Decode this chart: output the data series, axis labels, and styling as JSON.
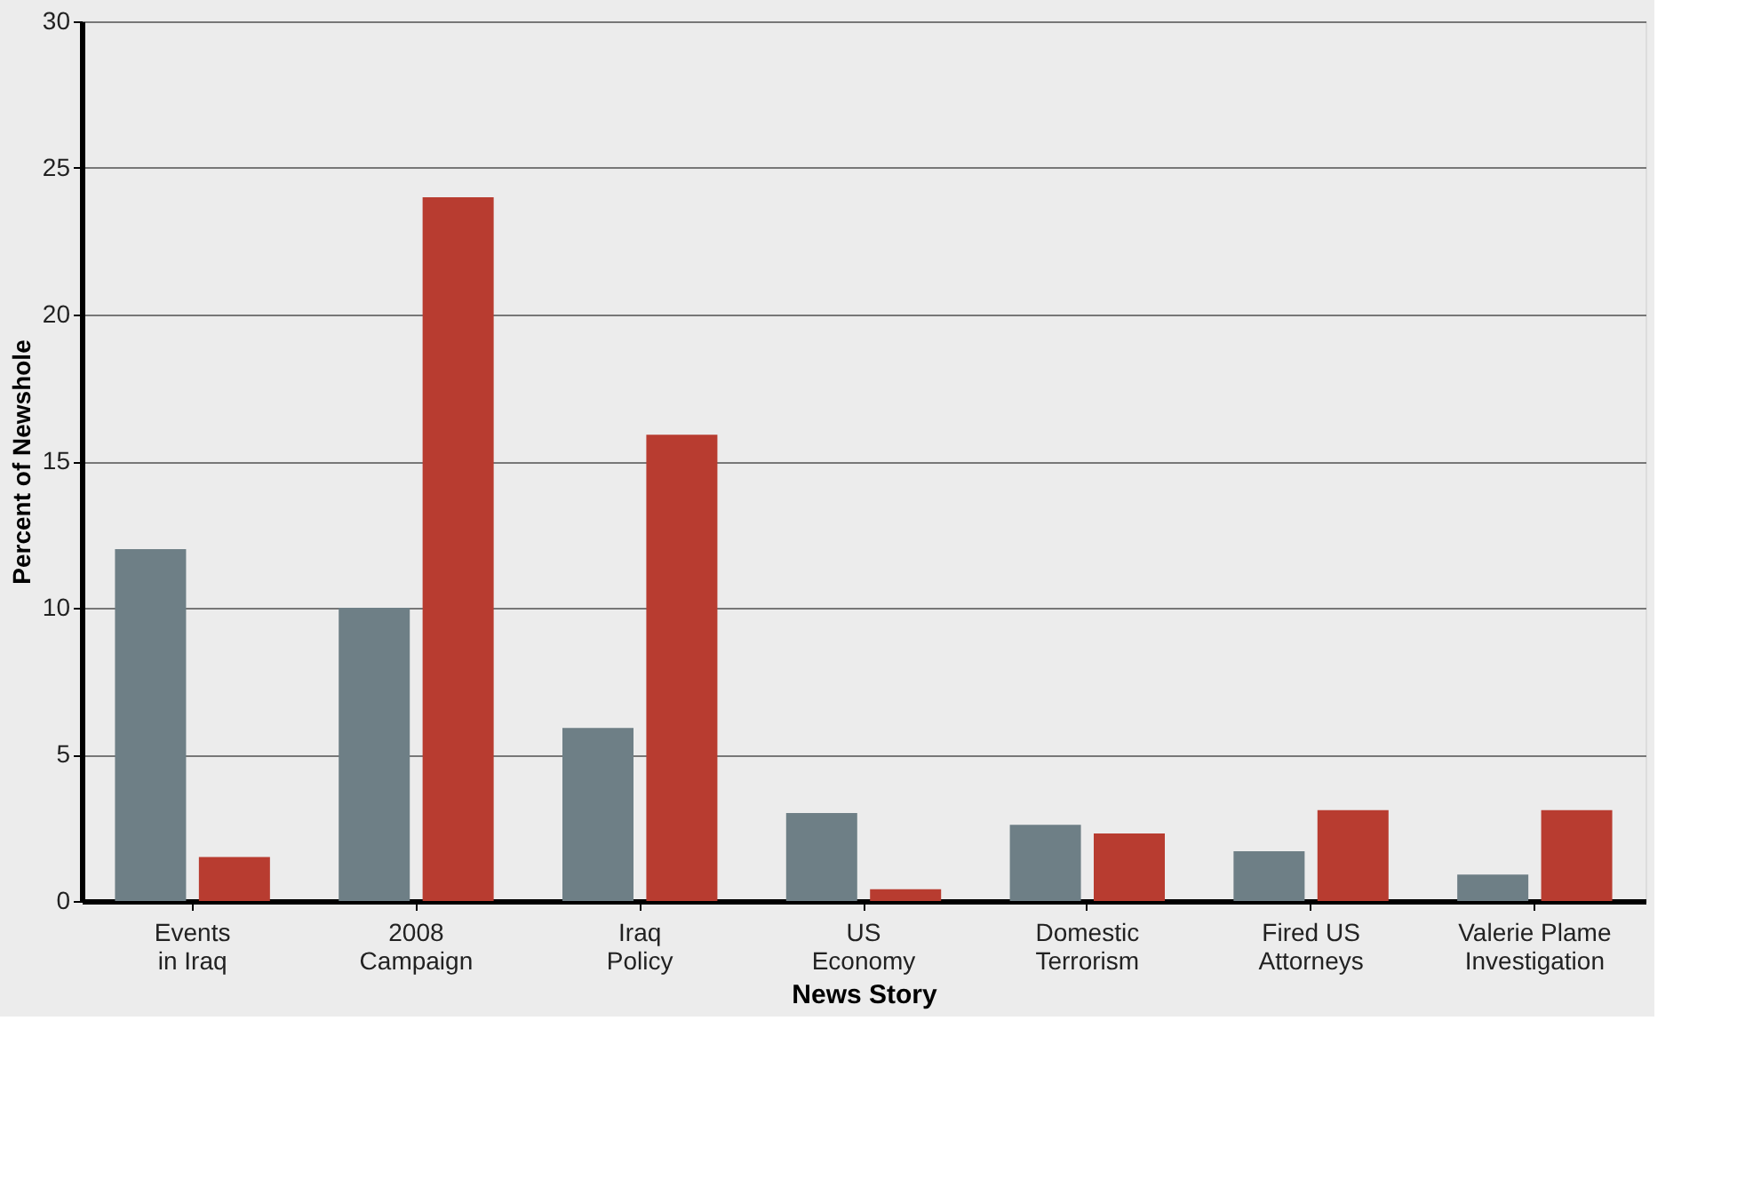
{
  "chart_data": {
    "type": "bar",
    "xlabel": "News Story",
    "ylabel": "Percent of Newshole",
    "categories": [
      "Events\nin Iraq",
      "2008\nCampaign",
      "Iraq\nPolicy",
      "US\nEconomy",
      "Domestic\nTerrorism",
      "Fired US\nAttorneys",
      "Valerie Plame\nInvestigation"
    ],
    "series": [
      {
        "color": "#6e7f86",
        "values": [
          12.0,
          10.0,
          5.9,
          3.0,
          2.6,
          1.7,
          0.9
        ]
      },
      {
        "color": "#b83c30",
        "values": [
          1.5,
          24.0,
          15.9,
          0.4,
          2.3,
          3.1,
          3.1
        ]
      }
    ],
    "ylim": [
      0,
      30
    ],
    "yticks": [
      0,
      5,
      10,
      15,
      20,
      25,
      30
    ],
    "grid": "y"
  }
}
